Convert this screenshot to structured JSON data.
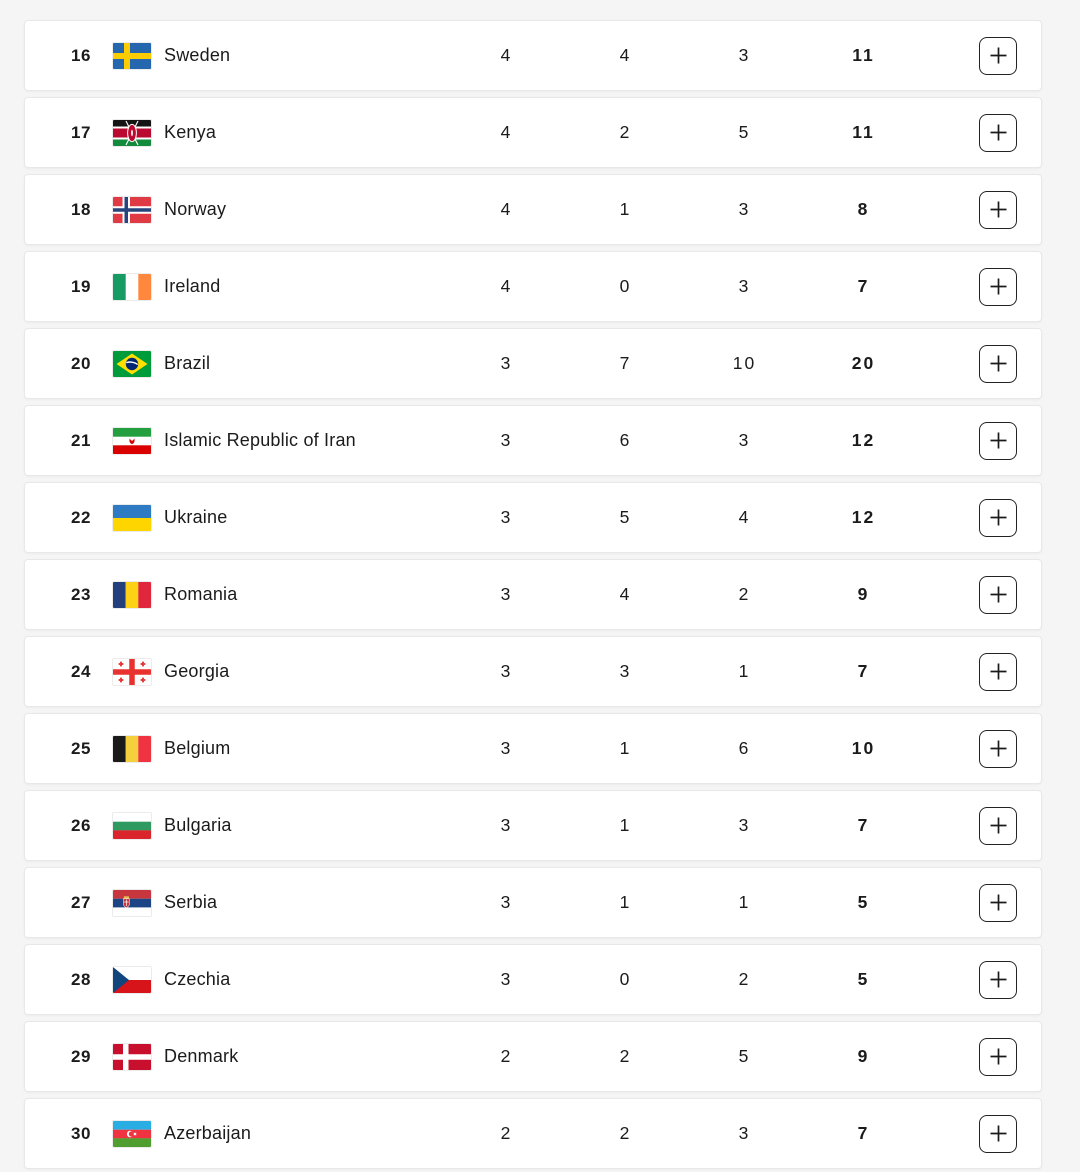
{
  "page": {
    "background_color": "#f5f5f6",
    "card_color": "#ffffff",
    "text_color": "#1b1b1b"
  },
  "medal_table": {
    "expand_button_label": "+",
    "rows": [
      {
        "rank": "16",
        "country": "Sweden",
        "flag_icon": "flag-sweden",
        "gold": "4",
        "silver": "4",
        "bronze": "3",
        "total": "11"
      },
      {
        "rank": "17",
        "country": "Kenya",
        "flag_icon": "flag-kenya",
        "gold": "4",
        "silver": "2",
        "bronze": "5",
        "total": "11"
      },
      {
        "rank": "18",
        "country": "Norway",
        "flag_icon": "flag-norway",
        "gold": "4",
        "silver": "1",
        "bronze": "3",
        "total": "8"
      },
      {
        "rank": "19",
        "country": "Ireland",
        "flag_icon": "flag-ireland",
        "gold": "4",
        "silver": "0",
        "bronze": "3",
        "total": "7"
      },
      {
        "rank": "20",
        "country": "Brazil",
        "flag_icon": "flag-brazil",
        "gold": "3",
        "silver": "7",
        "bronze": "10",
        "total": "20"
      },
      {
        "rank": "21",
        "country": "Islamic Republic of Iran",
        "flag_icon": "flag-iran",
        "gold": "3",
        "silver": "6",
        "bronze": "3",
        "total": "12"
      },
      {
        "rank": "22",
        "country": "Ukraine",
        "flag_icon": "flag-ukraine",
        "gold": "3",
        "silver": "5",
        "bronze": "4",
        "total": "12"
      },
      {
        "rank": "23",
        "country": "Romania",
        "flag_icon": "flag-romania",
        "gold": "3",
        "silver": "4",
        "bronze": "2",
        "total": "9"
      },
      {
        "rank": "24",
        "country": "Georgia",
        "flag_icon": "flag-georgia",
        "gold": "3",
        "silver": "3",
        "bronze": "1",
        "total": "7"
      },
      {
        "rank": "25",
        "country": "Belgium",
        "flag_icon": "flag-belgium",
        "gold": "3",
        "silver": "1",
        "bronze": "6",
        "total": "10"
      },
      {
        "rank": "26",
        "country": "Bulgaria",
        "flag_icon": "flag-bulgaria",
        "gold": "3",
        "silver": "1",
        "bronze": "3",
        "total": "7"
      },
      {
        "rank": "27",
        "country": "Serbia",
        "flag_icon": "flag-serbia",
        "gold": "3",
        "silver": "1",
        "bronze": "1",
        "total": "5"
      },
      {
        "rank": "28",
        "country": "Czechia",
        "flag_icon": "flag-czechia",
        "gold": "3",
        "silver": "0",
        "bronze": "2",
        "total": "5"
      },
      {
        "rank": "29",
        "country": "Denmark",
        "flag_icon": "flag-denmark",
        "gold": "2",
        "silver": "2",
        "bronze": "5",
        "total": "9"
      },
      {
        "rank": "30",
        "country": "Azerbaijan",
        "flag_icon": "flag-azerbaijan",
        "gold": "2",
        "silver": "2",
        "bronze": "3",
        "total": "7"
      }
    ]
  }
}
